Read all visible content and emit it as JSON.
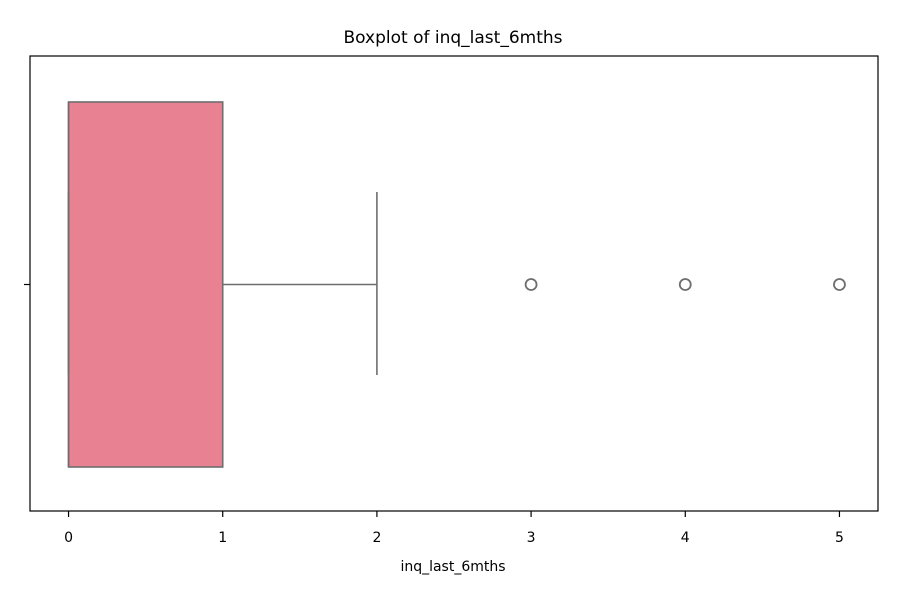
{
  "chart_data": {
    "type": "boxplot",
    "orientation": "horizontal",
    "title": "Boxplot of inq_last_6mths",
    "xlabel": "inq_last_6mths",
    "ylabel": "",
    "xlim": [
      -0.25,
      5.25
    ],
    "xticks": [
      0,
      1,
      2,
      3,
      4,
      5
    ],
    "xtick_labels": [
      "0",
      "1",
      "2",
      "3",
      "4",
      "5"
    ],
    "grid": false,
    "box": {
      "whisker_low": 0,
      "q1": 0,
      "median": 0,
      "q3": 1,
      "whisker_high": 2,
      "outliers": [
        3,
        4,
        5
      ]
    },
    "colors": {
      "box_fill": "#e88293",
      "line": "#6e6e6e",
      "axes": "#000000"
    }
  }
}
